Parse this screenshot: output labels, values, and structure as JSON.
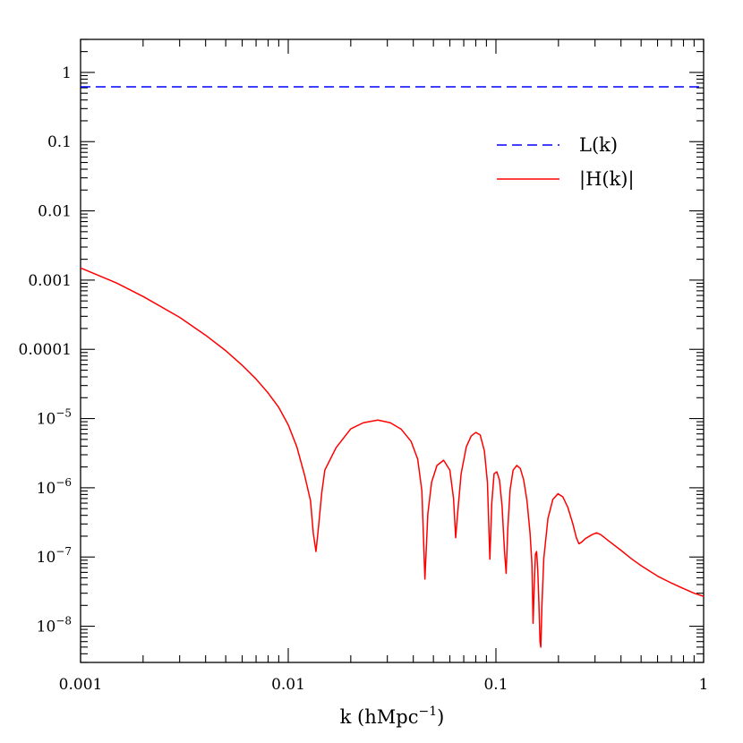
{
  "chart_data": {
    "type": "line",
    "xscale": "log",
    "yscale": "log",
    "xlim": [
      0.001,
      1
    ],
    "ylim": [
      3e-09,
      3
    ],
    "xlabel": {
      "prefix": "k  (hMpc",
      "sup": "−1",
      "suffix": ")"
    },
    "ylabel": "",
    "x_ticks": [
      {
        "value": 0.001,
        "label": "0.001"
      },
      {
        "value": 0.01,
        "label": "0.01"
      },
      {
        "value": 0.1,
        "label": "0.1"
      },
      {
        "value": 1,
        "label": "1"
      }
    ],
    "y_ticks": [
      {
        "value": 1,
        "base": "1",
        "exp": ""
      },
      {
        "value": 0.1,
        "base": "0.1",
        "exp": ""
      },
      {
        "value": 0.01,
        "base": "0.01",
        "exp": ""
      },
      {
        "value": 0.001,
        "base": "0.001",
        "exp": ""
      },
      {
        "value": 0.0001,
        "base": "0.0001",
        "exp": ""
      },
      {
        "value": 1e-05,
        "base": "10",
        "exp": "−5"
      },
      {
        "value": 1e-06,
        "base": "10",
        "exp": "−6"
      },
      {
        "value": 1e-07,
        "base": "10",
        "exp": "−7"
      },
      {
        "value": 1e-08,
        "base": "10",
        "exp": "−8"
      }
    ],
    "legend_position": "top-right",
    "series": [
      {
        "name": "L(k)",
        "color": "#0000ff",
        "style": "dashed",
        "x": [
          0.001,
          1
        ],
        "y": [
          0.62,
          0.62
        ]
      },
      {
        "name": "|H(k)|",
        "color": "#ff0000",
        "style": "solid",
        "x": [
          0.001,
          0.0015,
          0.002,
          0.003,
          0.004,
          0.005,
          0.006,
          0.007,
          0.008,
          0.009,
          0.01,
          0.011,
          0.012,
          0.0128,
          0.0132,
          0.0136,
          0.014,
          0.0145,
          0.015,
          0.017,
          0.02,
          0.023,
          0.027,
          0.031,
          0.035,
          0.039,
          0.042,
          0.044,
          0.0455,
          0.047,
          0.049,
          0.052,
          0.056,
          0.06,
          0.0625,
          0.064,
          0.0655,
          0.068,
          0.072,
          0.076,
          0.08,
          0.084,
          0.088,
          0.091,
          0.0935,
          0.0955,
          0.098,
          0.101,
          0.104,
          0.107,
          0.11,
          0.112,
          0.114,
          0.117,
          0.121,
          0.126,
          0.131,
          0.136,
          0.141,
          0.146,
          0.149,
          0.151,
          0.153,
          0.155,
          0.157,
          0.159,
          0.161,
          0.163,
          0.1645,
          0.1665,
          0.17,
          0.178,
          0.188,
          0.199,
          0.21,
          0.222,
          0.234,
          0.244,
          0.251,
          0.258,
          0.27,
          0.29,
          0.305,
          0.32,
          0.35,
          0.4,
          0.45,
          0.5,
          0.6,
          0.7,
          0.8,
          0.9,
          1.0
        ],
        "y": [
          0.0015,
          0.0009,
          0.00058,
          0.00029,
          0.00016,
          9.55e-05,
          5.89e-05,
          3.72e-05,
          2.34e-05,
          1.45e-05,
          8.1e-06,
          3.9e-06,
          1.5e-06,
          6.5e-07,
          2.2e-07,
          1.2e-07,
          2.8e-07,
          8.5e-07,
          1.8e-06,
          3.8e-06,
          7.1e-06,
          8.7e-06,
          9.5e-06,
          8.7e-06,
          7e-06,
          4.7e-06,
          2.6e-06,
          9e-07,
          4.8e-08,
          4.2e-07,
          1.2e-06,
          2.1e-06,
          2.5e-06,
          1.8e-06,
          7e-07,
          1.9e-07,
          4.5e-07,
          1.6e-06,
          3.9e-06,
          5.6e-06,
          6.3e-06,
          5.8e-06,
          3.4e-06,
          1.2e-06,
          9.3e-08,
          6e-07,
          1.6e-06,
          1.7e-06,
          1.3e-06,
          5.5e-07,
          1.2e-07,
          5.8e-08,
          2.5e-07,
          9.4e-07,
          1.8e-06,
          2.1e-06,
          1.9e-06,
          1.3e-06,
          6.6e-07,
          2.2e-07,
          8e-08,
          1.1e-08,
          4e-08,
          1.1e-07,
          1.2e-07,
          6.5e-08,
          2.2e-08,
          6e-09,
          5e-09,
          2e-08,
          9.5e-08,
          3.6e-07,
          6.8e-07,
          8.2e-07,
          7.4e-07,
          5.2e-07,
          3.1e-07,
          1.9e-07,
          1.55e-07,
          1.63e-07,
          1.85e-07,
          2.1e-07,
          2.24e-07,
          2.1e-07,
          1.7e-07,
          1.25e-07,
          9.4e-08,
          7.5e-08,
          5.3e-08,
          4.2e-08,
          3.5e-08,
          3e-08,
          2.7e-08
        ]
      }
    ]
  }
}
